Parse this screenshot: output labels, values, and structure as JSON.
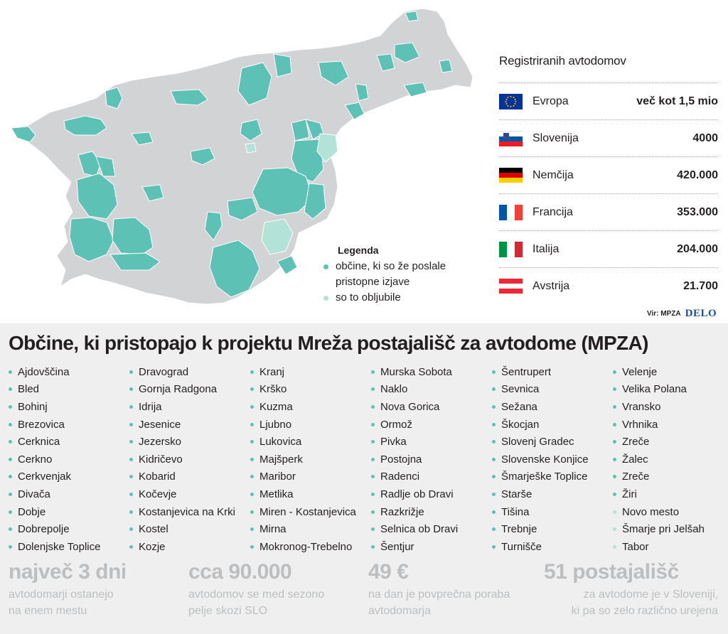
{
  "colors": {
    "sent": "#5dc1b5",
    "promised": "#b2e2d8",
    "base_map": "#d1d3d4",
    "stat_gray": "#bcbec0",
    "delo_blue": "#1b4f9c"
  },
  "legend": {
    "title": "Legenda",
    "items": [
      {
        "label": "občine, ki so že poslale pristopne izjave",
        "color": "#5dc1b5"
      },
      {
        "label": "so to obljubile",
        "color": "#b2e2d8"
      }
    ]
  },
  "registry": {
    "title": "Registriranih avtodomov",
    "rows": [
      {
        "flag": "eu-flag-icon",
        "name": "Evropa",
        "value": "več kot 1,5 mio"
      },
      {
        "flag": "slovenia-flag-icon",
        "name": "Slovenija",
        "value": "4000"
      },
      {
        "flag": "germany-flag-icon",
        "name": "Nemčija",
        "value": "420.000"
      },
      {
        "flag": "france-flag-icon",
        "name": "Francija",
        "value": "353.000"
      },
      {
        "flag": "italy-flag-icon",
        "name": "Italija",
        "value": "204.000"
      },
      {
        "flag": "austria-flag-icon",
        "name": "Avstrija",
        "value": "21.700"
      }
    ]
  },
  "source": {
    "label": "Vir: MPZA",
    "brand": "DELO"
  },
  "headline": "Občine, ki pristopajo k projektu Mreža postajališč za avtodome (MPZA)",
  "municipalities": [
    [
      {
        "name": "Ajdovščina",
        "status": "sent"
      },
      {
        "name": "Bled",
        "status": "sent"
      },
      {
        "name": "Bohinj",
        "status": "sent"
      },
      {
        "name": "Brezovica",
        "status": "sent"
      },
      {
        "name": "Cerknica",
        "status": "sent"
      },
      {
        "name": "Cerkno",
        "status": "sent"
      },
      {
        "name": "Cerkvenjak",
        "status": "sent"
      },
      {
        "name": "Divača",
        "status": "sent"
      },
      {
        "name": "Dobje",
        "status": "sent"
      },
      {
        "name": "Dobrepolje",
        "status": "sent"
      },
      {
        "name": "Dolenjske Toplice",
        "status": "sent"
      }
    ],
    [
      {
        "name": "Dravograd",
        "status": "sent"
      },
      {
        "name": "Gornja Radgona",
        "status": "sent"
      },
      {
        "name": "Idrija",
        "status": "sent"
      },
      {
        "name": "Jesenice",
        "status": "sent"
      },
      {
        "name": "Jezersko",
        "status": "sent"
      },
      {
        "name": "Kidričevo",
        "status": "sent"
      },
      {
        "name": "Kobarid",
        "status": "sent"
      },
      {
        "name": "Kočevje",
        "status": "sent"
      },
      {
        "name": "Kostanjevica na Krki",
        "status": "sent"
      },
      {
        "name": "Kostel",
        "status": "sent"
      },
      {
        "name": "Kozje",
        "status": "sent"
      }
    ],
    [
      {
        "name": "Kranj",
        "status": "sent"
      },
      {
        "name": "Krško",
        "status": "sent"
      },
      {
        "name": "Kuzma",
        "status": "sent"
      },
      {
        "name": "Ljubno",
        "status": "sent"
      },
      {
        "name": "Lukovica",
        "status": "sent"
      },
      {
        "name": "Majšperk",
        "status": "sent"
      },
      {
        "name": "Maribor",
        "status": "sent"
      },
      {
        "name": "Metlika",
        "status": "sent"
      },
      {
        "name": "Miren - Kostanjevica",
        "status": "sent"
      },
      {
        "name": "Mirna",
        "status": "sent"
      },
      {
        "name": "Mokronog-Trebelno",
        "status": "sent"
      }
    ],
    [
      {
        "name": "Murska Sobota",
        "status": "sent"
      },
      {
        "name": "Naklo",
        "status": "sent"
      },
      {
        "name": "Nova Gorica",
        "status": "sent"
      },
      {
        "name": "Ormož",
        "status": "sent"
      },
      {
        "name": "Pivka",
        "status": "sent"
      },
      {
        "name": "Postojna",
        "status": "sent"
      },
      {
        "name": "Radenci",
        "status": "sent"
      },
      {
        "name": "Radlje ob Dravi",
        "status": "sent"
      },
      {
        "name": "Razkrižje",
        "status": "sent"
      },
      {
        "name": "Selnica ob Dravi",
        "status": "sent"
      },
      {
        "name": "Šentjur",
        "status": "sent"
      }
    ],
    [
      {
        "name": "Šentrupert",
        "status": "sent"
      },
      {
        "name": "Sevnica",
        "status": "sent"
      },
      {
        "name": "Sežana",
        "status": "sent"
      },
      {
        "name": "Škocjan",
        "status": "sent"
      },
      {
        "name": "Slovenj Gradec",
        "status": "sent"
      },
      {
        "name": "Slovenske Konjice",
        "status": "sent"
      },
      {
        "name": "Šmarješke Toplice",
        "status": "sent"
      },
      {
        "name": "Starše",
        "status": "sent"
      },
      {
        "name": "Tišina",
        "status": "sent"
      },
      {
        "name": "Trebnje",
        "status": "sent"
      },
      {
        "name": "Turnišče",
        "status": "sent"
      }
    ],
    [
      {
        "name": "Velenje",
        "status": "sent"
      },
      {
        "name": "Velika Polana",
        "status": "sent"
      },
      {
        "name": "Vransko",
        "status": "sent"
      },
      {
        "name": "Vrhnika",
        "status": "sent"
      },
      {
        "name": "Zreče",
        "status": "sent"
      },
      {
        "name": "Žalec",
        "status": "sent"
      },
      {
        "name": "Zreče",
        "status": "sent"
      },
      {
        "name": "Žiri",
        "status": "sent"
      },
      {
        "name": "Novo mesto",
        "status": "promised"
      },
      {
        "name": "Šmarje pri Jelšah",
        "status": "promised"
      },
      {
        "name": "Tabor",
        "status": "promised"
      }
    ]
  ],
  "stats": [
    {
      "big": "največ 3 dni",
      "line1": "avtodomarji ostanejo",
      "line2": "na enem mestu",
      "align": "left"
    },
    {
      "big": "cca 90.000",
      "line1": "avtodomov se med sezono",
      "line2": "pelje skozi SLO",
      "align": "left"
    },
    {
      "big": "49 €",
      "line1": "na dan je povprečna poraba",
      "line2": "avtodomarja",
      "align": "left"
    },
    {
      "big": "51 postajališč",
      "line1": "za avtodome je v Sloveniji,",
      "line2": "ki pa so zelo različno urejena",
      "align": "right"
    }
  ]
}
